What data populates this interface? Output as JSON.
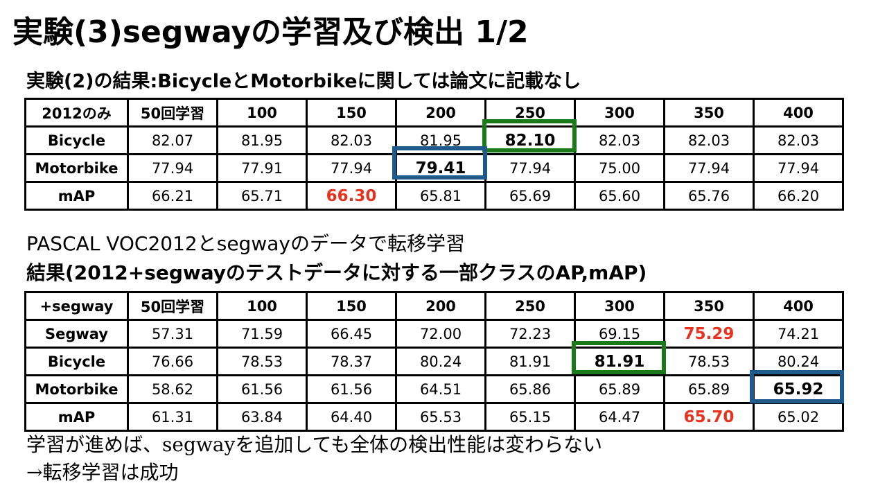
{
  "slide": {
    "title": "実験(3)segwayの学習及び検出 1/2",
    "subtitle1": "実験(2)の結果:BicycleとMotorbikeに関しては論文に記載なし",
    "middle_line1": "PASCAL VOC2012とsegwayのデータで転移学習",
    "middle_line2": "結果(2012+segwayのテストデータに対する一部クラスのAP,mAP)",
    "footer_line1": "学習が進めば、segwayを追加しても全体の検出性能は変わらない",
    "footer_line2": "→転移学習は成功"
  },
  "table1": {
    "header": [
      "2012のみ",
      "50回学習",
      "100",
      "150",
      "200",
      "250",
      "300",
      "350",
      "400"
    ],
    "rows": [
      {
        "label": "Bicycle",
        "values": [
          "82.07",
          "81.95",
          "82.03",
          "81.95",
          "82.10",
          "82.03",
          "82.03",
          "82.03"
        ]
      },
      {
        "label": "Motorbike",
        "values": [
          "77.94",
          "77.91",
          "77.94",
          "79.41",
          "77.94",
          "75.00",
          "77.94",
          "77.94"
        ]
      },
      {
        "label": "mAP",
        "values": [
          "66.21",
          "65.71",
          "66.30",
          "65.81",
          "65.69",
          "65.60",
          "65.76",
          "66.20"
        ]
      }
    ]
  },
  "table2": {
    "header": [
      "+segway",
      "50回学習",
      "100",
      "150",
      "200",
      "250",
      "300",
      "350",
      "400"
    ],
    "rows": [
      {
        "label": "Segway",
        "values": [
          "57.31",
          "71.59",
          "66.45",
          "72.00",
          "72.23",
          "69.15",
          "75.29",
          "74.21"
        ]
      },
      {
        "label": "Bicycle",
        "values": [
          "76.66",
          "78.53",
          "78.37",
          "80.24",
          "81.91",
          "81.91",
          "78.53",
          "80.24"
        ]
      },
      {
        "label": "Motorbike",
        "values": [
          "58.62",
          "61.56",
          "61.56",
          "64.51",
          "65.86",
          "65.89",
          "65.89",
          "65.92"
        ]
      },
      {
        "label": "mAP",
        "values": [
          "61.31",
          "63.84",
          "64.40",
          "65.53",
          "65.15",
          "64.47",
          "65.70",
          "65.02"
        ]
      }
    ]
  },
  "highlights": {
    "green_color": "#1a7a1a",
    "blue_color": "#1f5a8c",
    "red_text_color": "#e8321e"
  }
}
